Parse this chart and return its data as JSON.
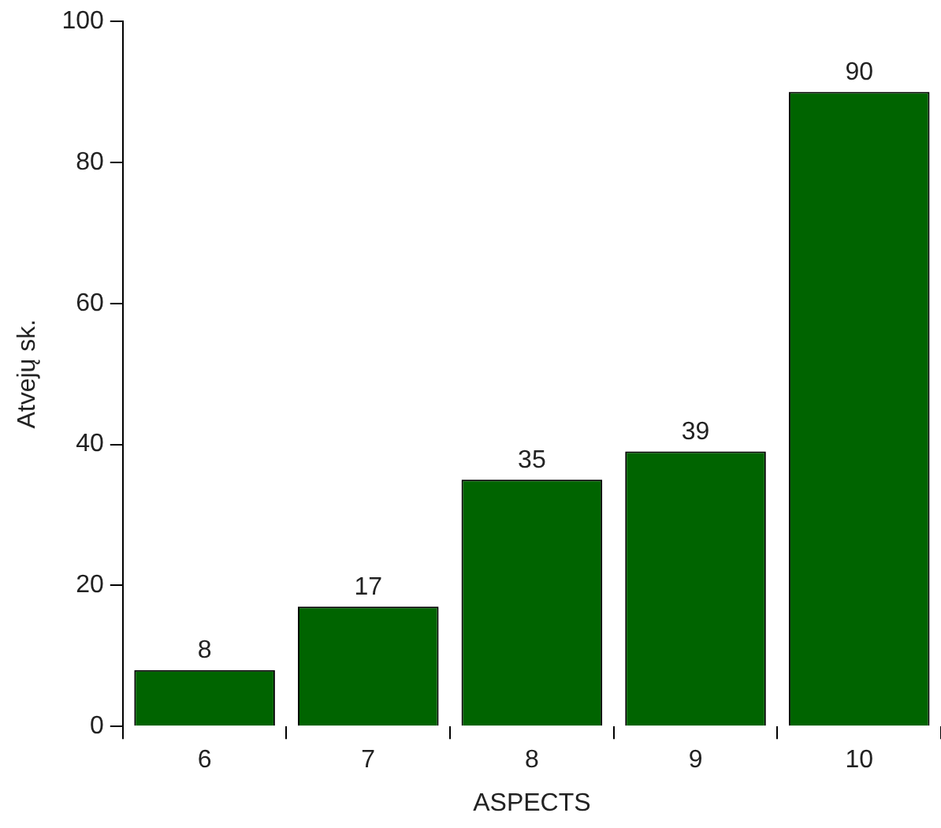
{
  "chart_data": {
    "type": "bar",
    "xlabel": "ASPECTS",
    "ylabel": "Atvejų sk.",
    "categories": [
      "6",
      "7",
      "8",
      "9",
      "10"
    ],
    "values": [
      8,
      17,
      35,
      39,
      90
    ],
    "color": "#006400",
    "ylim": [
      0,
      100
    ],
    "yticks": [
      0,
      20,
      40,
      60,
      80,
      100
    ],
    "grid": false,
    "legend": false,
    "data_labels": true
  }
}
